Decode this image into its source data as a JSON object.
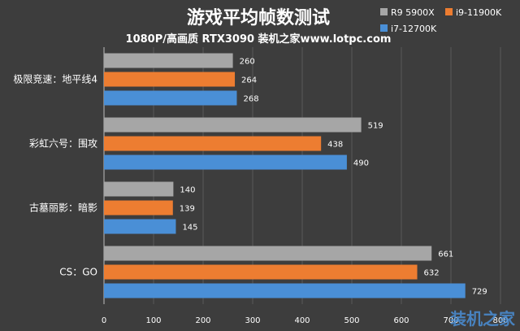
{
  "watermark": "装机之家",
  "chart_data": {
    "type": "bar",
    "orientation": "horizontal",
    "title": "游戏平均帧数测试",
    "subtitle": "1080P/高画质 RTX3090 装机之家www.lotpc.com",
    "categories": [
      "极限竞速：地平线4",
      "彩虹六号：围攻",
      "古墓丽影：暗影",
      "CS：GO"
    ],
    "series": [
      {
        "name": "R9 5900X",
        "color": "#a6a6a6",
        "values": [
          260,
          519,
          140,
          661
        ]
      },
      {
        "name": "i9-11900K",
        "color": "#ed7d31",
        "values": [
          264,
          438,
          139,
          632
        ]
      },
      {
        "name": "i7-12700K",
        "color": "#4a8fd6",
        "values": [
          268,
          490,
          145,
          729
        ]
      }
    ],
    "xlim": [
      0,
      800
    ],
    "xticks": [
      0,
      100,
      200,
      300,
      400,
      500,
      600,
      700,
      800
    ],
    "grid": true,
    "legend_position": "top-right"
  }
}
